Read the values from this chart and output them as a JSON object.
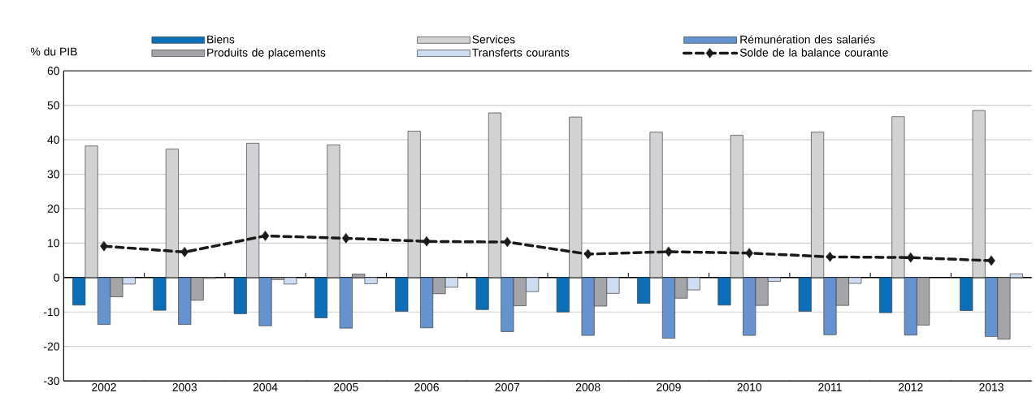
{
  "chart_data": {
    "type": "bar",
    "ylabel": "% du PIB",
    "categories": [
      "2002",
      "2003",
      "2004",
      "2005",
      "2006",
      "2007",
      "2008",
      "2009",
      "2010",
      "2011",
      "2012",
      "2013"
    ],
    "series": [
      {
        "name": "Biens",
        "color": "#0a6fb8",
        "values": [
          -8,
          -9.5,
          -10.5,
          -11.7,
          -9.8,
          -9.3,
          -10,
          -7.5,
          -8,
          -9.8,
          -10.2,
          -9.6
        ]
      },
      {
        "name": "Services",
        "color": "#d1d2d4",
        "values": [
          38.2,
          37.3,
          39,
          38.5,
          42.5,
          47.8,
          46.6,
          42.2,
          41.3,
          42.2,
          46.7,
          48.5
        ]
      },
      {
        "name": "Rémunération des salariés",
        "color": "#6593cf",
        "values": [
          -13.6,
          -13.6,
          -14,
          -14.7,
          -14.6,
          -15.7,
          -16.8,
          -17.6,
          -16.8,
          -16.6,
          -16.7,
          -17.1
        ]
      },
      {
        "name": "Produits de placements",
        "color": "#a4a5a8",
        "values": [
          -5.6,
          -6.6,
          -0.6,
          1,
          -4.7,
          -8.2,
          -8.3,
          -6,
          -8.1,
          -8.1,
          -13.8,
          -17.9
        ]
      },
      {
        "name": "Transferts courants",
        "color": "#cddcf1",
        "values": [
          -1.9,
          -0.3,
          -1.9,
          -1.8,
          -2.8,
          -4.1,
          -4.6,
          -3.6,
          -1.1,
          -1.7,
          null,
          1.1
        ]
      },
      {
        "name": "Solde de la balance courante",
        "type": "line",
        "color": "#1a1a1a",
        "marker": "diamond",
        "line_style": "dashed",
        "values": [
          9.1,
          7.4,
          12.1,
          11.4,
          10.5,
          10.3,
          6.8,
          7.5,
          7.1,
          6.0,
          5.8,
          4.9
        ]
      }
    ],
    "ylim": [
      -30,
      60
    ],
    "yticks": [
      -30,
      -20,
      -10,
      0,
      10,
      20,
      30,
      40,
      50,
      60
    ],
    "grid": "y",
    "legend": "top"
  }
}
